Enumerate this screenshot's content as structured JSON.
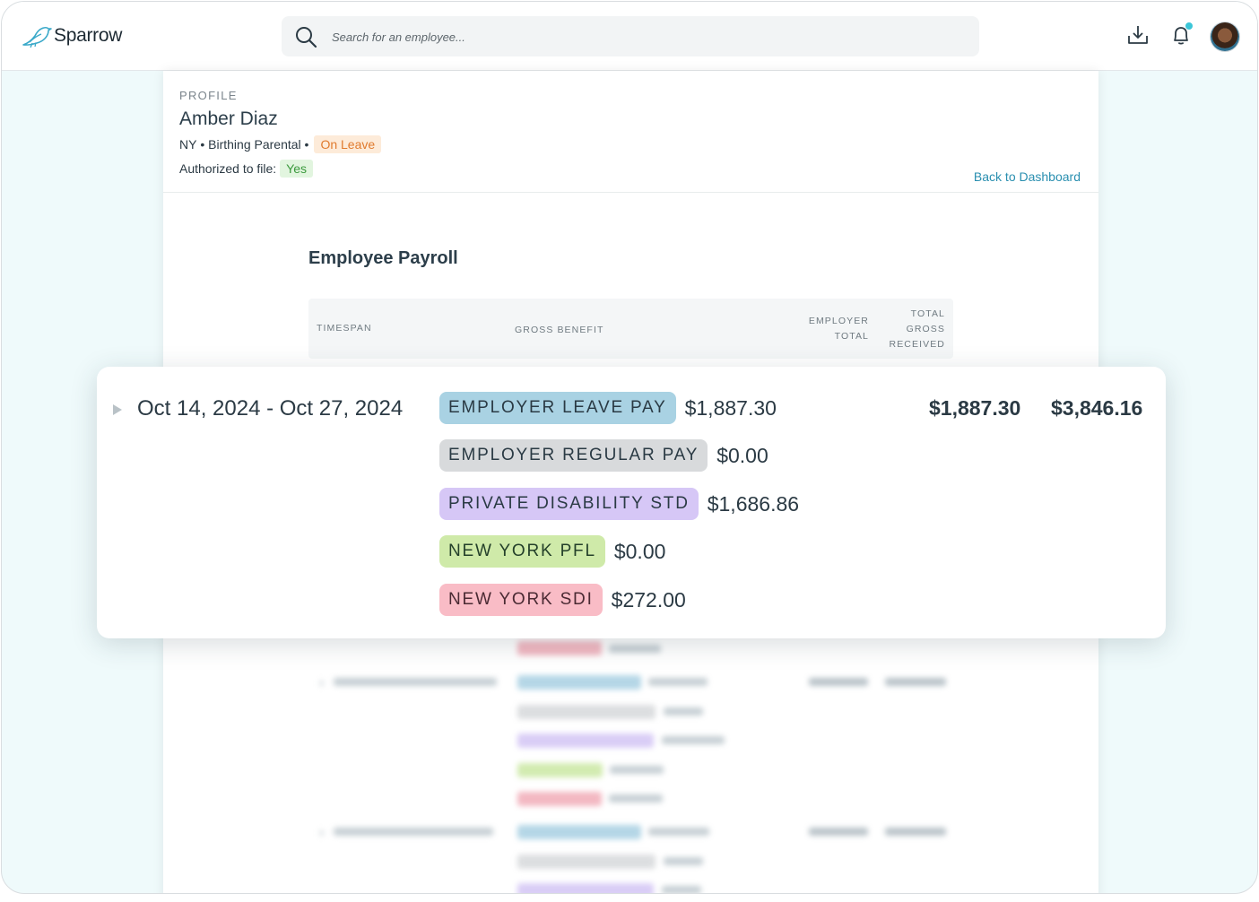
{
  "app": {
    "name": "Sparrow"
  },
  "search": {
    "placeholder": "Search for an employee..."
  },
  "header": {
    "download_icon": "download-icon",
    "bell_icon": "bell-icon",
    "notification_dot_color": "#3cc6d8"
  },
  "profile": {
    "kicker": "PROFILE",
    "name": "Amber Diaz",
    "state": "NY",
    "leave_type": "Birthing Parental",
    "status": "On Leave",
    "authorized_label": "Authorized to file:",
    "authorized_value": "Yes",
    "back_link": "Back to Dashboard"
  },
  "payroll": {
    "title": "Employee Payroll",
    "headers": {
      "timespan": "TIMESPAN",
      "gross_benefit": "GROSS BENEFIT",
      "employer_total": "EMPLOYER TOTAL",
      "total_gross": "TOTAL GROSS RECEIVED"
    },
    "expanded": {
      "timespan": "Oct 14, 2024 - Oct 27, 2024",
      "benefits": [
        {
          "label": "EMPLOYER LEAVE PAY",
          "amount": "$1,887.30",
          "color": "#a9d2e3"
        },
        {
          "label": "EMPLOYER REGULAR PAY",
          "amount": "$0.00",
          "color": "#d8dadc"
        },
        {
          "label": "PRIVATE DISABILITY STD",
          "amount": "$1,686.86",
          "color": "#d6c7f6"
        },
        {
          "label": "NEW YORK PFL",
          "amount": "$0.00",
          "color": "#cfeaa9"
        },
        {
          "label": "NEW YORK SDI",
          "amount": "$272.00",
          "color": "#f9bcc6"
        }
      ],
      "employer_total": "$1,887.30",
      "total_gross": "$3,846.16"
    }
  }
}
